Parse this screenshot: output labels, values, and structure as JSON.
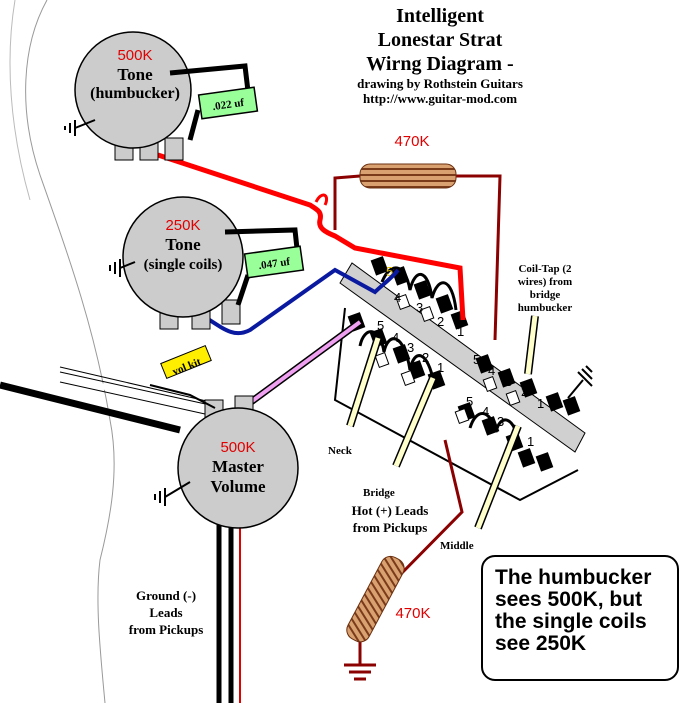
{
  "title": {
    "line1": "Intelligent",
    "line2": "Lonestar Strat",
    "line3": "Wirng Diagram -",
    "credit": "drawing by Rothstein Guitars",
    "url": "http://www.guitar-mod.com"
  },
  "pots": {
    "tone_hb": {
      "value": "500K",
      "name": "Tone",
      "sub": "(humbucker)",
      "cap": ".022 uf"
    },
    "tone_sc": {
      "value": "250K",
      "name": "Tone",
      "sub": "(single coils)",
      "cap": ".047 uf"
    },
    "master": {
      "value": "500K",
      "name1": "Master",
      "name2": "Volume"
    }
  },
  "resistors": {
    "top": "470K",
    "bottom": "470K"
  },
  "vol_kit": "vol kit",
  "switch_marker": "5",
  "switch_numbers": {
    "top": [
      "5",
      "4",
      "3",
      "2",
      "1"
    ],
    "middle": [
      "5",
      "4",
      "3",
      "2",
      "1"
    ],
    "right": [
      "5",
      "4",
      "3",
      "2",
      "1"
    ],
    "bottom": [
      "5",
      "4",
      "3",
      "2",
      "1"
    ]
  },
  "labels": {
    "coil_tap": [
      "Coil-Tap (2",
      "wires) from",
      "bridge",
      "humbucker"
    ],
    "neck": "Neck",
    "bridge": "Bridge",
    "middle": "Middle",
    "hot": [
      "Hot (+) Leads",
      "from Pickups"
    ],
    "ground": [
      "Ground (-)",
      "Leads",
      "from Pickups"
    ]
  },
  "note": [
    "The humbucker",
    "sees 500K, but",
    "the single coils",
    "see 250K"
  ],
  "colors": {
    "hot_wire": "#ff0000",
    "blue_wire": "#0a1aa0",
    "resistor_wire": "#8b0000",
    "pot_fill": "#cccccc",
    "cap_fill": "#99ff99"
  }
}
